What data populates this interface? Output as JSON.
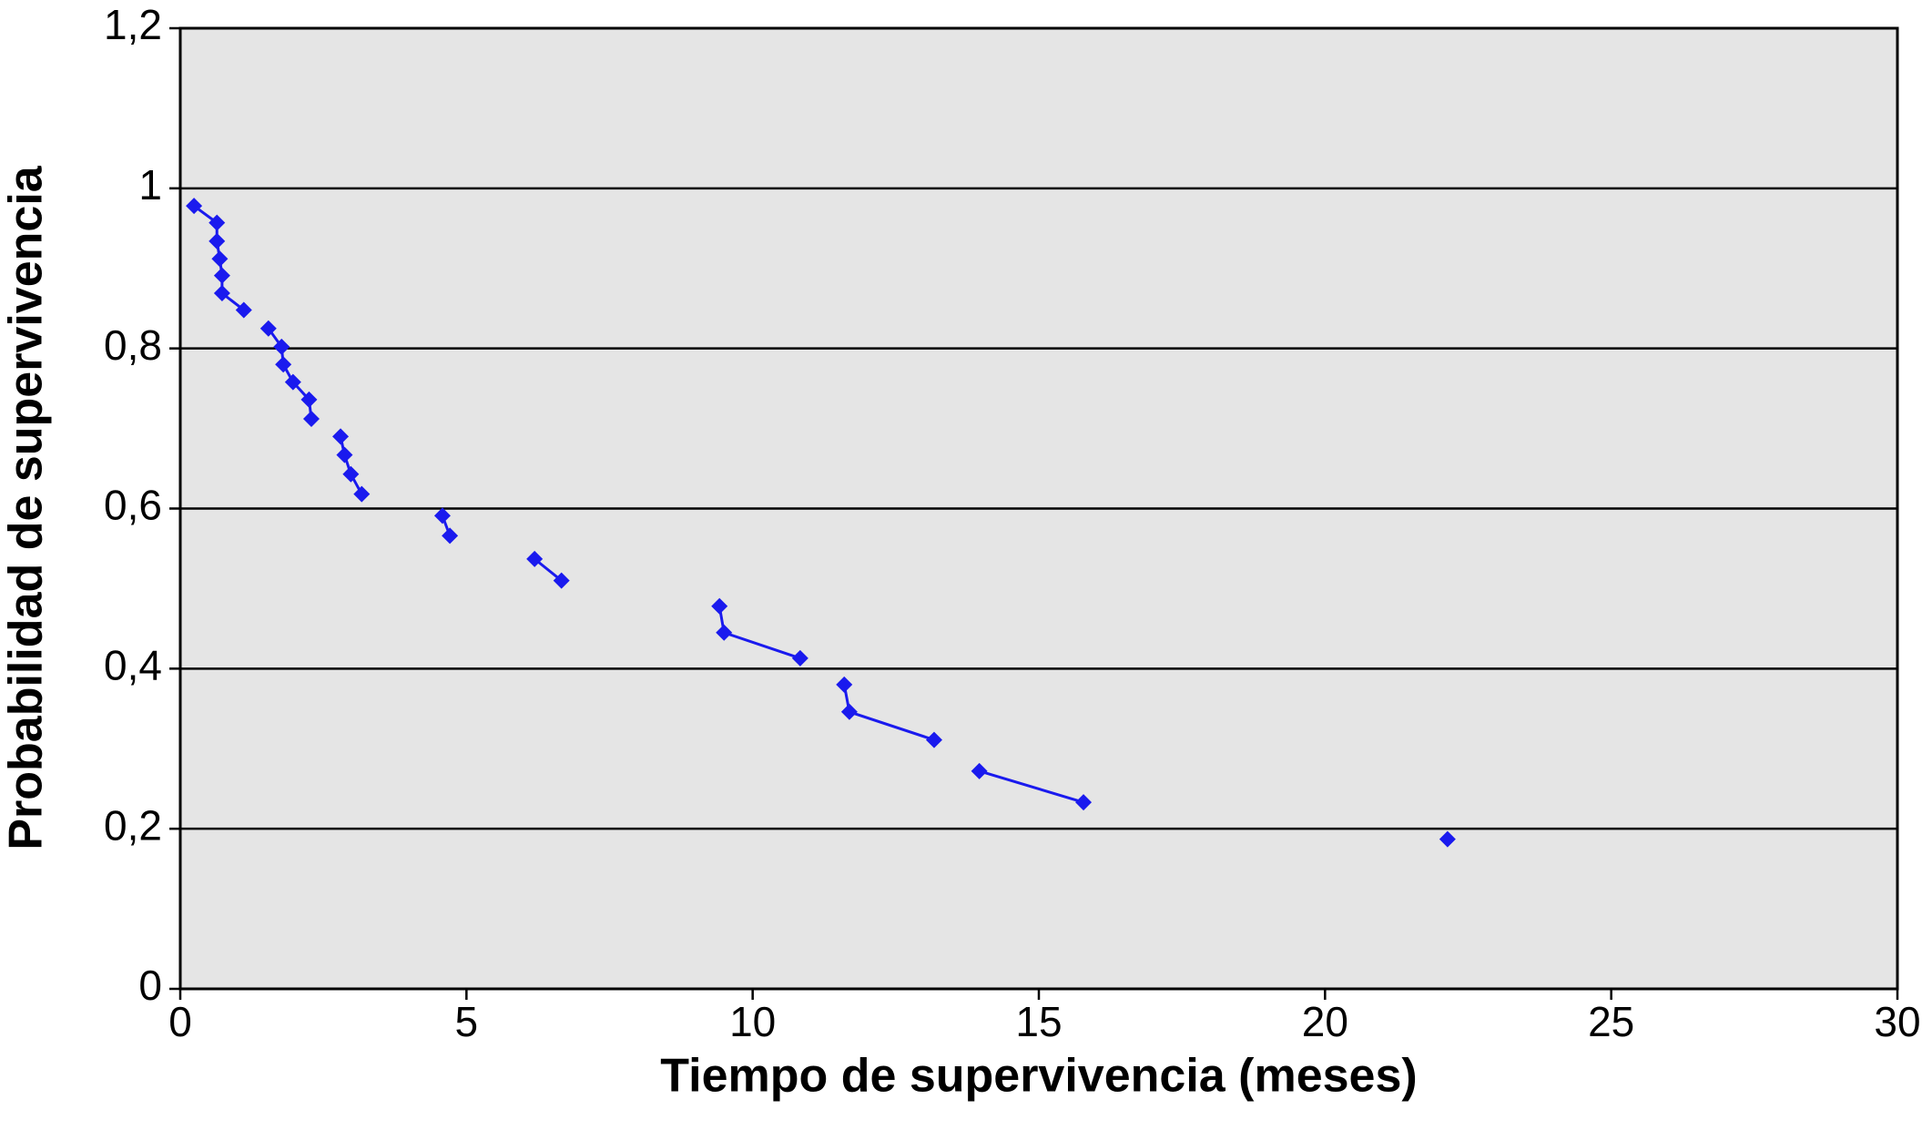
{
  "chart_data": {
    "type": "line",
    "xlabel": "Tiempo de supervivencia (meses)",
    "ylabel": "Probabilidad de supervivencia",
    "x": [
      0.24,
      0.64,
      0.64,
      0.69,
      0.73,
      0.73,
      1.11,
      null,
      1.54,
      1.77,
      1.8,
      1.97,
      2.25,
      2.29,
      null,
      2.8,
      2.87,
      2.98,
      3.17,
      null,
      4.58,
      4.71,
      null,
      6.19,
      6.66,
      null,
      9.42,
      9.5,
      10.83,
      null,
      11.6,
      11.69,
      13.17,
      null,
      13.96,
      15.78,
      null,
      22.14
    ],
    "series": [
      {
        "color": "#1a1aee",
        "values": [
          0.978,
          0.957,
          0.934,
          0.912,
          0.891,
          0.869,
          0.848,
          null,
          0.825,
          0.802,
          0.78,
          0.758,
          0.736,
          0.712,
          null,
          0.69,
          0.667,
          0.643,
          0.618,
          null,
          0.591,
          0.566,
          null,
          0.537,
          0.51,
          null,
          0.478,
          0.445,
          0.413,
          null,
          0.38,
          0.346,
          0.311,
          null,
          0.272,
          0.233,
          null,
          0.187
        ]
      }
    ],
    "xlim": [
      0,
      30
    ],
    "xticks": [
      0,
      5,
      10,
      15,
      20,
      25,
      30
    ],
    "ylim": [
      0,
      1.2
    ],
    "yticks": [
      0,
      {
        "value": 0.2,
        "label": "0,2"
      },
      {
        "value": 0.4,
        "label": "0,4"
      },
      {
        "value": 0.6,
        "label": "0,6"
      },
      {
        "value": 0.8,
        "label": "0,8"
      },
      1,
      {
        "value": 1.2,
        "label": "1,2"
      }
    ],
    "grid": true,
    "plot_background": "#e5e5e5"
  }
}
